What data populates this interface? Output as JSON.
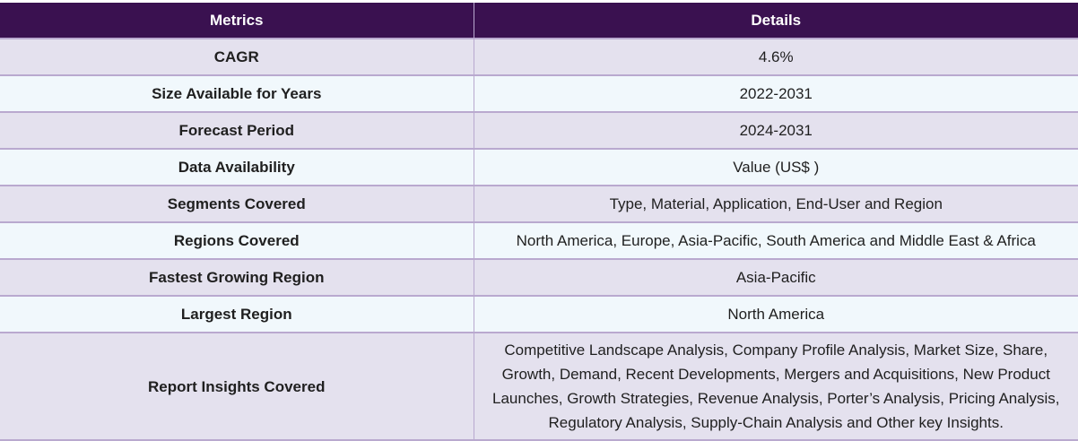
{
  "header": {
    "metrics_label": "Metrics",
    "details_label": "Details"
  },
  "rows": [
    {
      "metric": "CAGR",
      "detail": "4.6%"
    },
    {
      "metric": "Size Available for Years",
      "detail": "2022-2031"
    },
    {
      "metric": "Forecast Period",
      "detail": "2024-2031"
    },
    {
      "metric": "Data Availability",
      "detail": "Value (US$ )"
    },
    {
      "metric": "Segments Covered",
      "detail": "Type, Material, Application, End-User and Region"
    },
    {
      "metric": "Regions Covered",
      "detail": "North America, Europe, Asia-Pacific, South America and Middle East & Africa"
    },
    {
      "metric": "Fastest Growing Region",
      "detail": "Asia-Pacific"
    },
    {
      "metric": "Largest Region",
      "detail": "North America"
    },
    {
      "metric": "Report Insights Covered",
      "detail": "Competitive Landscape Analysis, Company Profile Analysis, Market Size, Share, Growth, Demand, Recent Developments, Mergers and Acquisitions, New Product Launches, Growth Strategies, Revenue Analysis, Porter’s Analysis, Pricing Analysis, Regulatory Analysis, Supply-Chain Analysis and Other key Insights."
    }
  ],
  "colors": {
    "header_bg": "#3a1150",
    "row_odd_bg": "#e4e1ee",
    "row_even_bg": "#f1f8fc",
    "border": "#b9a9cf"
  }
}
